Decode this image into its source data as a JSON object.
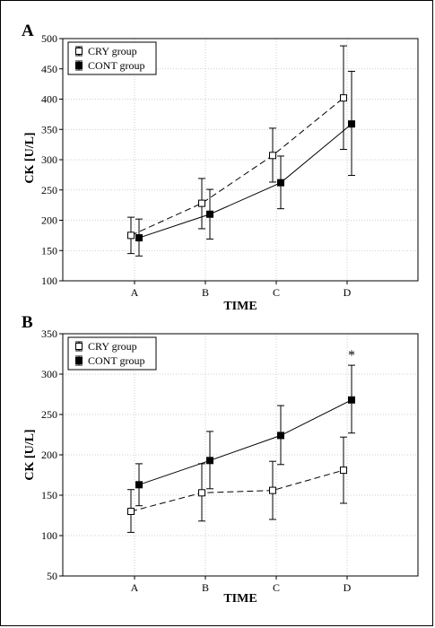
{
  "chart_data": [
    {
      "type": "line",
      "panel_label": "A",
      "categories": [
        "A",
        "B",
        "C",
        "D"
      ],
      "xlabel": "TIME",
      "ylabel": "CK [U/L]",
      "ylim": [
        100,
        500
      ],
      "yticks": [
        100,
        150,
        200,
        250,
        300,
        350,
        400,
        450,
        500
      ],
      "grid": true,
      "legend_position": "top-left",
      "series": [
        {
          "name": "CRY group",
          "marker": "open-square",
          "linestyle": "dashed",
          "values": [
            175,
            228,
            307,
            402
          ],
          "err_low": [
            145,
            186,
            263,
            317
          ],
          "err_high": [
            205,
            269,
            352,
            488
          ]
        },
        {
          "name": "CONT group",
          "marker": "filled-square",
          "linestyle": "solid",
          "values": [
            171,
            210,
            262,
            359
          ],
          "err_low": [
            141,
            169,
            219,
            274
          ],
          "err_high": [
            202,
            251,
            306,
            446
          ]
        }
      ]
    },
    {
      "type": "line",
      "panel_label": "B",
      "categories": [
        "A",
        "B",
        "C",
        "D"
      ],
      "xlabel": "TIME",
      "ylabel": "CK [U/L]",
      "ylim": [
        50,
        350
      ],
      "yticks": [
        50,
        100,
        150,
        200,
        250,
        300,
        350
      ],
      "grid": true,
      "legend_position": "top-left",
      "annotation": "*",
      "series": [
        {
          "name": "CRY group",
          "marker": "open-square",
          "linestyle": "dashed",
          "values": [
            130,
            153,
            156,
            181
          ],
          "err_low": [
            104,
            118,
            120,
            140
          ],
          "err_high": [
            157,
            189,
            192,
            222
          ]
        },
        {
          "name": "CONT group",
          "marker": "filled-square",
          "linestyle": "solid",
          "values": [
            163,
            193,
            224,
            268
          ],
          "err_low": [
            137,
            158,
            188,
            227
          ],
          "err_high": [
            189,
            229,
            261,
            311
          ]
        }
      ]
    }
  ]
}
